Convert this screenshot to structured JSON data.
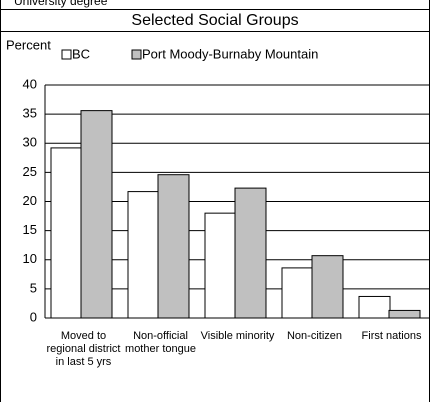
{
  "header": {
    "text": "University degree"
  },
  "chart_data": {
    "type": "bar",
    "title": "Selected Social Groups",
    "y_label": "Percent",
    "categories": [
      "Moved to regional district in last 5 yrs",
      "Non-official mother tongue",
      "Visible minority",
      "Non-citizen",
      "First nations"
    ],
    "series": [
      {
        "name": "BC",
        "color": "#ffffff",
        "values": [
          29.2,
          21.7,
          18,
          8.6,
          3.7
        ]
      },
      {
        "name": "Port Moody-Burnaby Mountain",
        "color": "#c0c0c0",
        "values": [
          35.6,
          24.6,
          22.3,
          10.7,
          1.3
        ]
      }
    ],
    "ylim": [
      0,
      40
    ],
    "yticks": [
      0,
      5,
      10,
      15,
      20,
      25,
      30,
      35,
      40
    ],
    "grid": true
  }
}
